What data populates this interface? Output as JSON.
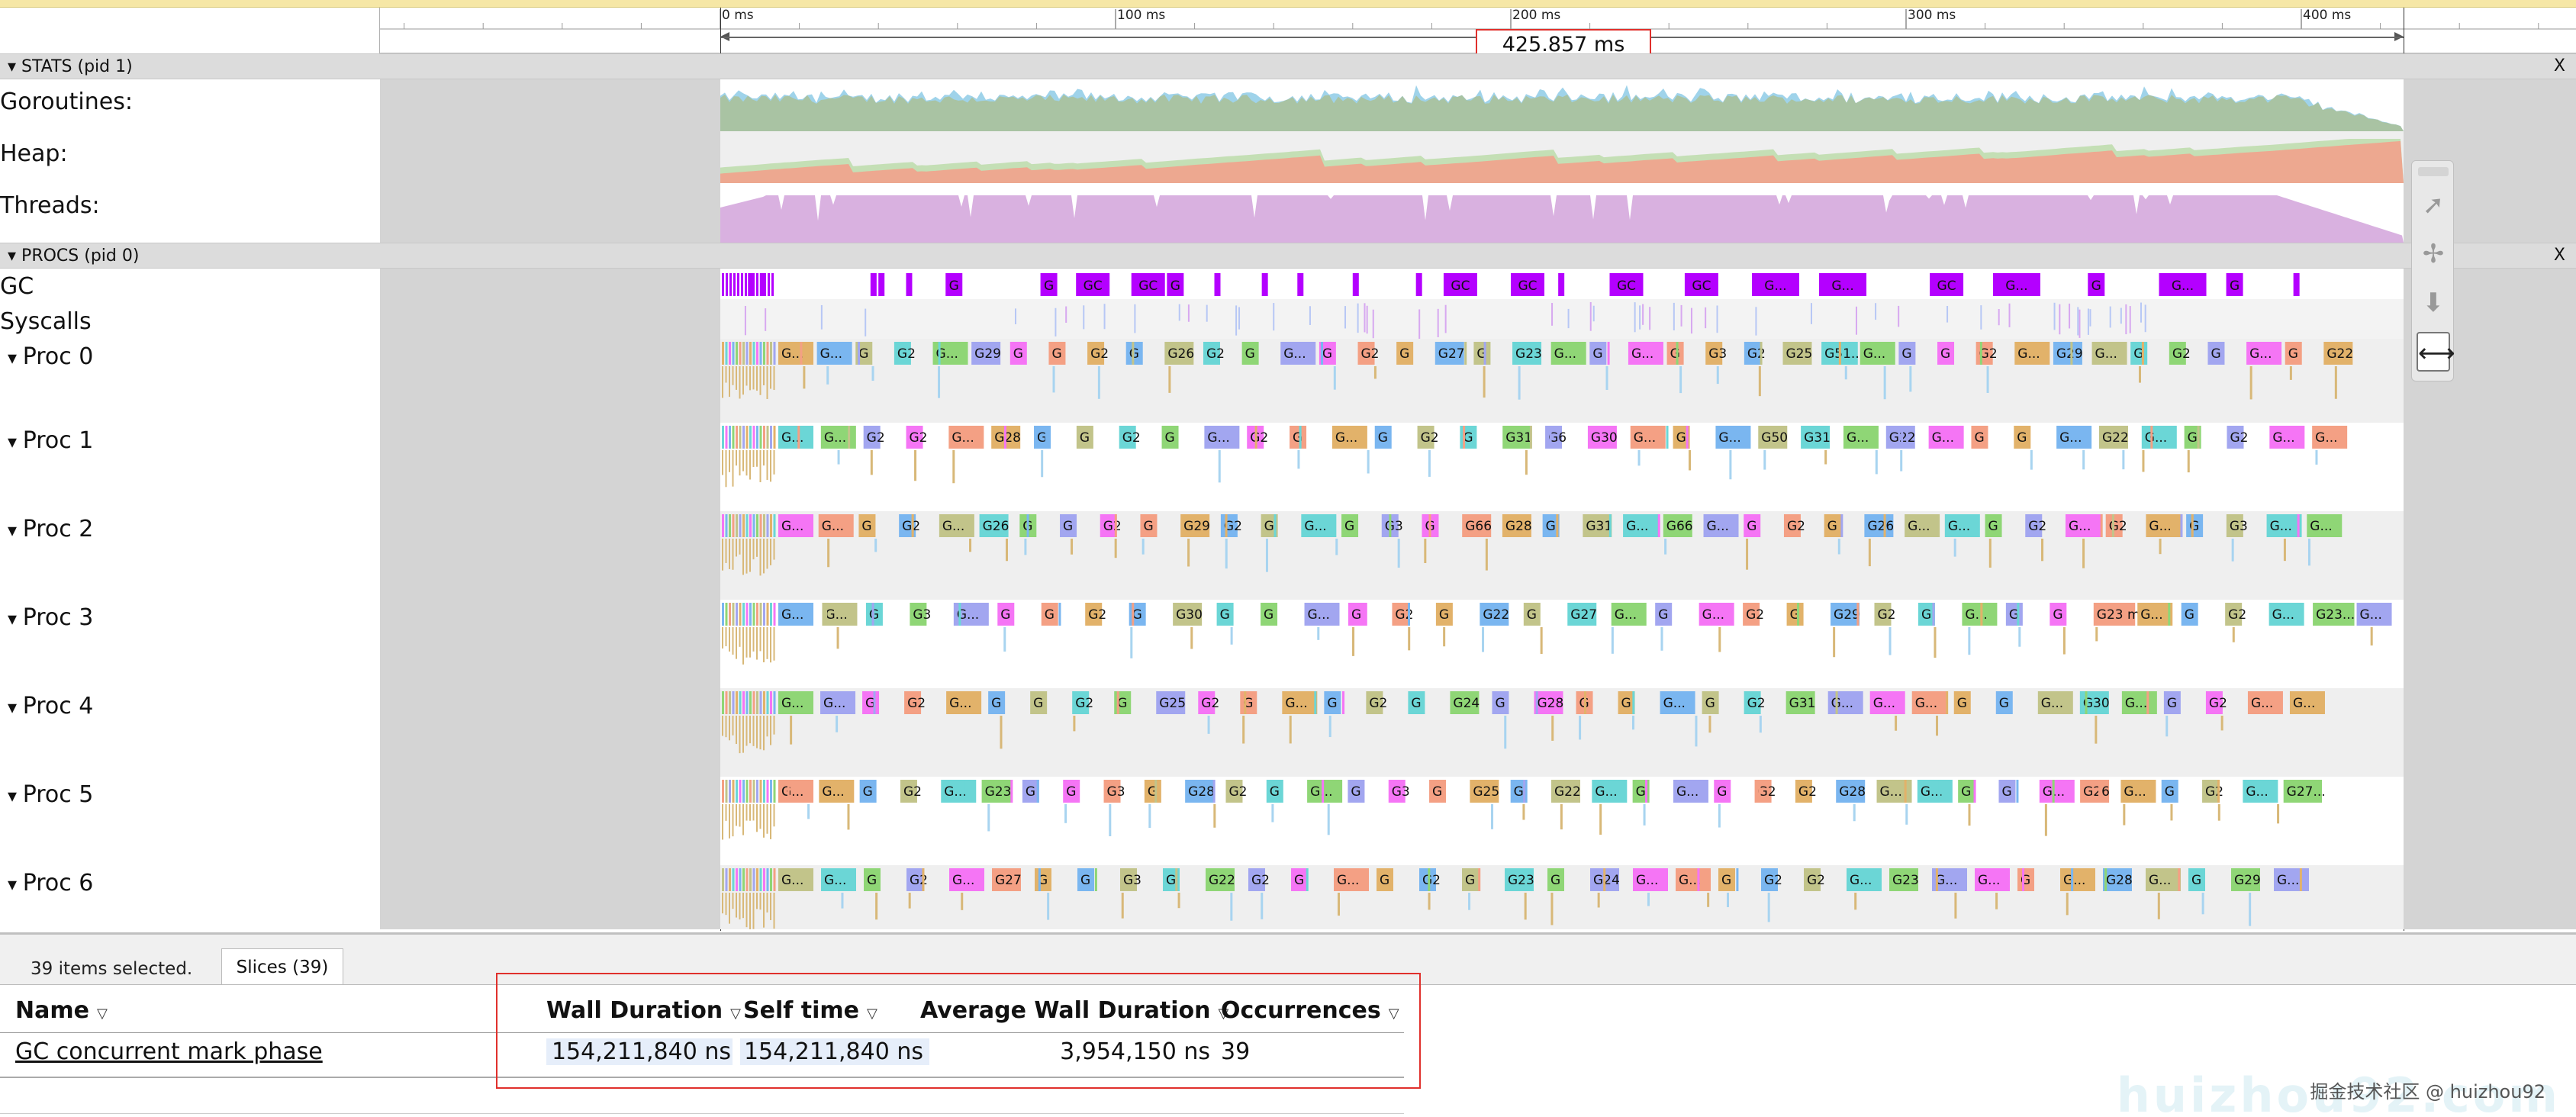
{
  "ruler": {
    "ticks": [
      "0 ms",
      "100 ms",
      "200 ms",
      "300 ms",
      "400 ms"
    ],
    "selected_range": "425.857 ms"
  },
  "groups": [
    {
      "label": "STATS (pid 1)",
      "close": "X"
    },
    {
      "label": "PROCS (pid 0)",
      "close": "X"
    }
  ],
  "stats_tracks": [
    "Goroutines:",
    "Heap:",
    "Threads:"
  ],
  "gc_tracks": [
    "GC",
    "Syscalls"
  ],
  "gc_slices": [
    {
      "t": 7,
      "label": ""
    },
    {
      "t": 10,
      "label": ""
    },
    {
      "t": 38,
      "label": ""
    },
    {
      "t": 40,
      "label": ""
    },
    {
      "t": 47,
      "label": ""
    },
    {
      "t": 57,
      "label": "G"
    },
    {
      "t": 81,
      "label": "G"
    },
    {
      "t": 90,
      "label": "GC"
    },
    {
      "t": 104,
      "label": "GC"
    },
    {
      "t": 113,
      "label": "G"
    },
    {
      "t": 125,
      "label": ""
    },
    {
      "t": 137,
      "label": ""
    },
    {
      "t": 146,
      "label": ""
    },
    {
      "t": 160,
      "label": ""
    },
    {
      "t": 176,
      "label": ""
    },
    {
      "t": 183,
      "label": "GC"
    },
    {
      "t": 200,
      "label": "GC"
    },
    {
      "t": 212,
      "label": ""
    },
    {
      "t": 225,
      "label": "GC"
    },
    {
      "t": 244,
      "label": "GC"
    },
    {
      "t": 261,
      "label": "G..."
    },
    {
      "t": 278,
      "label": "G..."
    },
    {
      "t": 306,
      "label": "GC"
    },
    {
      "t": 322,
      "label": "G..."
    },
    {
      "t": 346,
      "label": "G"
    },
    {
      "t": 364,
      "label": "G..."
    },
    {
      "t": 381,
      "label": "G"
    },
    {
      "t": 398,
      "label": ""
    }
  ],
  "procs": [
    {
      "name": "Proc 0",
      "slices": [
        "G...",
        "G...",
        "G",
        "G2",
        "G...",
        "G29",
        "G",
        "G",
        "G2",
        "G",
        "G26",
        "G2",
        "G",
        "G...",
        "G",
        "G2",
        "G",
        "G27",
        "G",
        "G23",
        "G...",
        "G",
        "G...",
        "G",
        "G3",
        "G2",
        "G25",
        "G51...",
        "G...",
        "G",
        "G",
        "G2",
        "G...",
        "G29",
        "G...",
        "G",
        "G2",
        "G",
        "G...",
        "G",
        "G22"
      ]
    },
    {
      "name": "Proc 1",
      "slices": [
        "G...",
        "G...",
        "G2",
        "G2",
        "G...",
        "G28",
        "G",
        "G",
        "G2",
        "G",
        "G...",
        "G2",
        "G",
        "G...",
        "G",
        "G2",
        "G",
        "G31",
        "G6",
        "G30",
        "G...",
        "G",
        "G...",
        "G50",
        "G31",
        "G...",
        "G22",
        "G...",
        "G",
        "G",
        "G...",
        "G22",
        "G...",
        "G",
        "G2",
        "G...",
        "G..."
      ]
    },
    {
      "name": "Proc 2",
      "slices": [
        "G...",
        "G...",
        "G",
        "G2",
        "G...",
        "G26",
        "G",
        "G",
        "G2",
        "G",
        "G29",
        "G2",
        "G",
        "G...",
        "G",
        "G3",
        "G",
        "G66",
        "G28",
        "G",
        "G31",
        "G...",
        "G66",
        "G...",
        "G",
        "G2",
        "G",
        "G26",
        "G...",
        "G...",
        "G",
        "G2",
        "G...",
        "G2",
        "G...",
        "G",
        "G3",
        "G...",
        "G..."
      ]
    },
    {
      "name": "Proc 3",
      "slices": [
        "G...",
        "G...",
        "G",
        "G3",
        "G...",
        "G",
        "G",
        "G2",
        "G",
        "G30",
        "G",
        "G",
        "G...",
        "G",
        "G2",
        "G",
        "G22",
        "G",
        "G27",
        "G...",
        "G",
        "G...",
        "G2",
        "G",
        "G29",
        "G2",
        "G",
        "G...",
        "G",
        "G",
        "G23 ma...",
        "G...",
        "G",
        "G2",
        "G...",
        "G23...",
        "G..."
      ]
    },
    {
      "name": "Proc 4",
      "slices": [
        "G...",
        "G...",
        "G",
        "G2",
        "G...",
        "G",
        "G",
        "G2",
        "G",
        "G25",
        "G2",
        "G",
        "G...",
        "G",
        "G2",
        "G",
        "G24",
        "G",
        "G28",
        "G",
        "G",
        "G...",
        "G",
        "G2",
        "G31",
        "G...",
        "G...",
        "G...",
        "G",
        "G",
        "G...",
        "G30",
        "G...",
        "G",
        "G2",
        "G...",
        "G..."
      ]
    },
    {
      "name": "Proc 5",
      "slices": [
        "G...",
        "G...",
        "G",
        "G2",
        "G...",
        "G23",
        "G",
        "G",
        "G3",
        "G",
        "G28",
        "G2",
        "G",
        "G...",
        "G",
        "G3",
        "G",
        "G25",
        "G",
        "G22",
        "G...",
        "G",
        "G...",
        "G",
        "G2",
        "G2",
        "G28",
        "G...",
        "G...",
        "G",
        "G",
        "G...",
        "G26",
        "G...",
        "G",
        "G2",
        "G...",
        "G27..."
      ]
    },
    {
      "name": "Proc 6",
      "slices": [
        "G...",
        "G...",
        "G",
        "G2",
        "G...",
        "G27",
        "G",
        "G",
        "G3",
        "G",
        "G22",
        "G2",
        "G",
        "G...",
        "G",
        "G2",
        "G",
        "G23",
        "G",
        "G24",
        "G...",
        "G...",
        "G",
        "G2",
        "G2",
        "G...",
        "G23",
        "G...",
        "G...",
        "G",
        "G...",
        "G28",
        "G...",
        "G",
        "G29",
        "G..."
      ]
    }
  ],
  "bottom": {
    "selected_info": "39 items selected.",
    "tab_label": "Slices (39)",
    "columns": [
      "Name",
      "Wall Duration",
      "Self time",
      "Average Wall Duration",
      "Occurrences"
    ],
    "row": {
      "name": "GC concurrent mark phase",
      "wall_duration": "154,211,840 ns",
      "self_time": "154,211,840 ns",
      "avg_wall_duration": "3,954,150 ns",
      "occurrences": "39"
    }
  },
  "toolbar": {
    "icons": [
      "pointer-icon",
      "pan-icon",
      "zoom-icon",
      "timing-icon"
    ],
    "glyphs": [
      "➚",
      "✢",
      "⬇",
      "⟷"
    ]
  },
  "watermark": "掘金技术社区 @ huizhou92",
  "watermark_faint": "huizhou92.com",
  "colors": {
    "gc": "#b400ff",
    "cyan": "#6bd6d6",
    "orange": "#e2b26a",
    "pink": "#f575f5",
    "blue": "#7ab6f0",
    "green": "#8fd676",
    "salmon": "#f4a084",
    "highlight": "#e0302c"
  }
}
